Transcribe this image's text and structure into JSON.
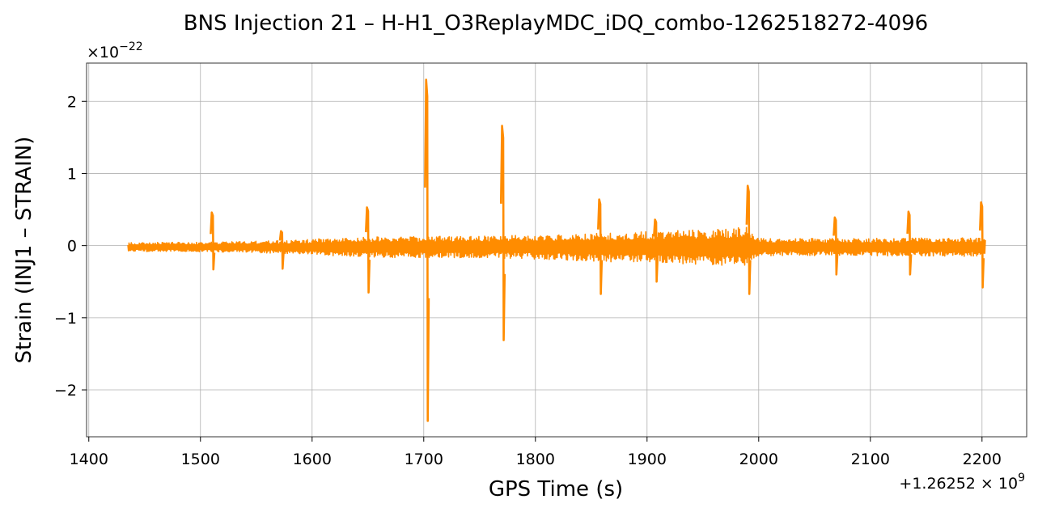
{
  "chart_data": {
    "type": "line",
    "title": "BNS Injection 21 – H-H1_O3ReplayMDC_iDQ_combo-1262518272-4096",
    "xlabel": "GPS Time (s)",
    "ylabel": "Strain (INJ1 – STRAIN)",
    "x_offset_label": "+1.26252 × 10",
    "x_offset_exponent": "9",
    "y_scale_label": "×10",
    "y_scale_exponent": "−22",
    "xlim": [
      1398,
      2240
    ],
    "ylim": [
      -2.65,
      2.53
    ],
    "x_ticks": [
      1400,
      1500,
      1600,
      1700,
      1800,
      1900,
      2000,
      2100,
      2200
    ],
    "x_tick_labels": [
      "1400",
      "1500",
      "1600",
      "1700",
      "1800",
      "1900",
      "2000",
      "2100",
      "2200"
    ],
    "y_ticks": [
      -2,
      -1,
      0,
      1,
      2
    ],
    "y_tick_labels": [
      "−2",
      "−1",
      "0",
      "1",
      "2"
    ],
    "grid": true,
    "series_color": "#ff8c00",
    "noise": {
      "x_start": 1435,
      "x_end": 2203,
      "envelope": [
        [
          1435,
          0.06
        ],
        [
          1520,
          0.07
        ],
        [
          1575,
          0.09
        ],
        [
          1600,
          0.11
        ],
        [
          1650,
          0.14
        ],
        [
          1700,
          0.15
        ],
        [
          1760,
          0.15
        ],
        [
          1800,
          0.17
        ],
        [
          1860,
          0.2
        ],
        [
          1900,
          0.22
        ],
        [
          1950,
          0.24
        ],
        [
          1990,
          0.28
        ],
        [
          2000,
          0.12
        ],
        [
          2100,
          0.12
        ],
        [
          2200,
          0.13
        ],
        [
          2203,
          0.1
        ]
      ]
    },
    "spikes": [
      {
        "x": 1511,
        "max": 0.46,
        "min": -0.33
      },
      {
        "x": 1573,
        "max": 0.2,
        "min": -0.32
      },
      {
        "x": 1650,
        "max": 0.53,
        "min": -0.65
      },
      {
        "x": 1703,
        "max": 2.3,
        "min": -2.43
      },
      {
        "x": 1771,
        "max": 1.66,
        "min": -1.31
      },
      {
        "x": 1858,
        "max": 0.64,
        "min": -0.67
      },
      {
        "x": 1908,
        "max": 0.36,
        "min": -0.5
      },
      {
        "x": 1991,
        "max": 0.83,
        "min": -0.67
      },
      {
        "x": 2069,
        "max": 0.39,
        "min": -0.4
      },
      {
        "x": 2135,
        "max": 0.47,
        "min": -0.4
      },
      {
        "x": 2200,
        "max": 0.6,
        "min": -0.58
      }
    ]
  }
}
